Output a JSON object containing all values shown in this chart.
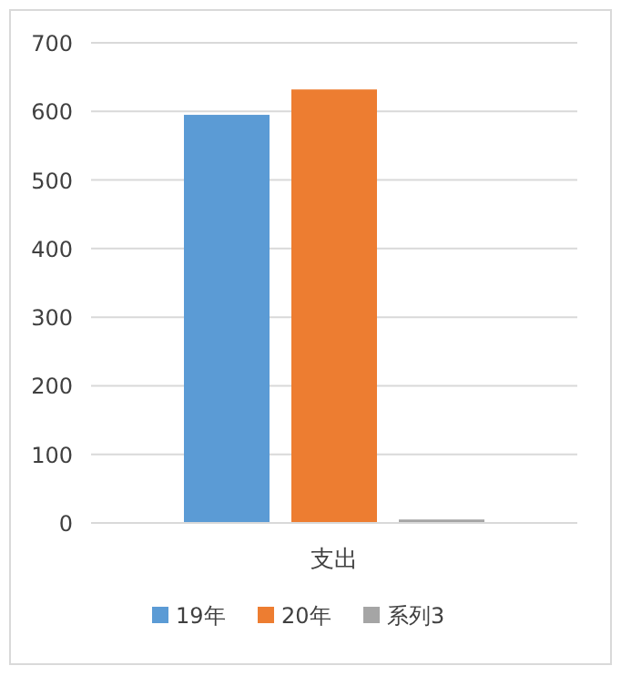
{
  "chart_data": {
    "type": "bar",
    "categories": [
      "支出"
    ],
    "series": [
      {
        "name": "19年",
        "color": "#5b9bd5",
        "values": [
          595
        ]
      },
      {
        "name": "20年",
        "color": "#ed7d31",
        "values": [
          632
        ]
      },
      {
        "name": "系列3",
        "color": "#a5a5a5",
        "values": [
          5
        ]
      }
    ],
    "ylim": [
      0,
      700
    ],
    "yticks": [
      0,
      100,
      200,
      300,
      400,
      500,
      600,
      700
    ],
    "grid": "y",
    "legend": "bottom"
  }
}
